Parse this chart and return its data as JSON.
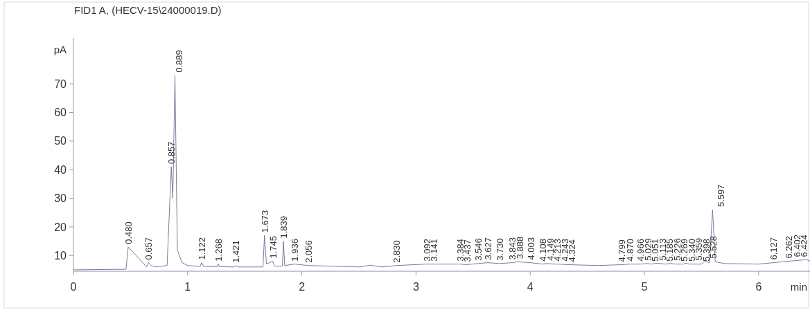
{
  "chart_data": {
    "type": "line",
    "title": "FID1 A,  (HECV-15\\24000019.D)",
    "xlabel": "min",
    "ylabel": "pA",
    "xlim": [
      0,
      6.45
    ],
    "ylim": [
      4.5,
      86
    ],
    "xticks": [
      0,
      1,
      2,
      3,
      4,
      5,
      6
    ],
    "yticks": [
      10,
      20,
      30,
      40,
      50,
      60,
      70
    ],
    "grid": false,
    "marker": "none",
    "line_style": "solid",
    "series": [
      {
        "color": "#7a7a9a",
        "x": [
          0,
          0.46,
          0.48,
          0.55,
          0.64,
          0.657,
          0.68,
          0.72,
          0.82,
          0.857,
          0.87,
          0.889,
          0.91,
          0.95,
          1.0,
          1.11,
          1.122,
          1.14,
          1.26,
          1.268,
          1.28,
          1.41,
          1.421,
          1.44,
          1.66,
          1.673,
          1.69,
          1.745,
          1.76,
          1.83,
          1.839,
          1.85,
          1.936,
          2.056,
          2.5,
          2.6,
          2.7,
          2.83,
          3.092,
          3.141,
          3.384,
          3.437,
          3.546,
          3.627,
          3.73,
          3.843,
          3.888,
          4.003,
          4.108,
          4.149,
          4.213,
          4.243,
          4.324,
          4.6,
          4.799,
          4.87,
          4.966,
          5.029,
          5.051,
          5.113,
          5.185,
          5.226,
          5.269,
          5.34,
          5.359,
          5.398,
          5.5,
          5.528,
          5.57,
          5.597,
          5.62,
          5.7,
          6.0,
          6.127,
          6.262,
          6.402,
          6.424,
          6.45
        ],
        "values": [
          5,
          5.2,
          13,
          10,
          6,
          7.5,
          6.5,
          6,
          6.5,
          41,
          30,
          73,
          12,
          7.5,
          6.5,
          6.2,
          7.5,
          6.2,
          6.1,
          7,
          6.1,
          6,
          6.5,
          6,
          6,
          17,
          7,
          8,
          6.3,
          6.3,
          15,
          6.5,
          7,
          6.5,
          6,
          6.6,
          6,
          6.5,
          7,
          7,
          7,
          6.8,
          7.2,
          7.5,
          7.2,
          7.5,
          7.8,
          7.5,
          7,
          7.2,
          7,
          7,
          6.8,
          6.5,
          6.8,
          7,
          7,
          7.2,
          7,
          7.3,
          7,
          7.2,
          7,
          7,
          7.3,
          7,
          7,
          8,
          7.5,
          26,
          7.8,
          7.2,
          7,
          7.5,
          8,
          8.5,
          8.5,
          8
        ]
      }
    ],
    "annotations": [
      {
        "text": "0.480",
        "x": 0.48,
        "y": 13
      },
      {
        "text": "0.657",
        "x": 0.657,
        "y": 7.5
      },
      {
        "text": "0.857",
        "x": 0.857,
        "y": 41
      },
      {
        "text": "0.889",
        "x": 0.889,
        "y": 73
      },
      {
        "text": "1.122",
        "x": 1.122,
        "y": 7.5
      },
      {
        "text": "1.268",
        "x": 1.268,
        "y": 7
      },
      {
        "text": "1.421",
        "x": 1.421,
        "y": 6.5
      },
      {
        "text": "1.673",
        "x": 1.673,
        "y": 17
      },
      {
        "text": "1.745",
        "x": 1.745,
        "y": 8
      },
      {
        "text": "1.839",
        "x": 1.839,
        "y": 15
      },
      {
        "text": "1.936",
        "x": 1.936,
        "y": 7
      },
      {
        "text": "2.056",
        "x": 2.056,
        "y": 6.5
      },
      {
        "text": "2.830",
        "x": 2.83,
        "y": 6.5
      },
      {
        "text": "3.092",
        "x": 3.092,
        "y": 7
      },
      {
        "text": "3.141",
        "x": 3.141,
        "y": 7
      },
      {
        "text": "3.384",
        "x": 3.384,
        "y": 7
      },
      {
        "text": "3.437",
        "x": 3.437,
        "y": 6.8
      },
      {
        "text": "3.546",
        "x": 3.546,
        "y": 7.2
      },
      {
        "text": "3.627",
        "x": 3.627,
        "y": 7.5
      },
      {
        "text": "3.730",
        "x": 3.73,
        "y": 7.2
      },
      {
        "text": "3.843",
        "x": 3.843,
        "y": 7.5
      },
      {
        "text": "3.888",
        "x": 3.888,
        "y": 7.8
      },
      {
        "text": "4.003",
        "x": 4.003,
        "y": 7.5
      },
      {
        "text": "4.108",
        "x": 4.108,
        "y": 7
      },
      {
        "text": "4.149",
        "x": 4.149,
        "y": 7.2
      },
      {
        "text": "4.213",
        "x": 4.213,
        "y": 7
      },
      {
        "text": "4.243",
        "x": 4.243,
        "y": 7
      },
      {
        "text": "4.324",
        "x": 4.324,
        "y": 6.8
      },
      {
        "text": "4.799",
        "x": 4.799,
        "y": 6.8
      },
      {
        "text": "4.870",
        "x": 4.87,
        "y": 7
      },
      {
        "text": "4.966",
        "x": 4.966,
        "y": 7
      },
      {
        "text": "5.029",
        "x": 5.029,
        "y": 7.2
      },
      {
        "text": "5.051",
        "x": 5.051,
        "y": 7
      },
      {
        "text": "5.113",
        "x": 5.113,
        "y": 7.3
      },
      {
        "text": "5.185",
        "x": 5.185,
        "y": 7
      },
      {
        "text": "5.226",
        "x": 5.226,
        "y": 7.2
      },
      {
        "text": "5.269",
        "x": 5.269,
        "y": 7
      },
      {
        "text": "5.340",
        "x": 5.34,
        "y": 7
      },
      {
        "text": "5.359",
        "x": 5.359,
        "y": 7.3
      },
      {
        "text": "5.398",
        "x": 5.398,
        "y": 7
      },
      {
        "text": "5.528",
        "x": 5.528,
        "y": 8
      },
      {
        "text": "5.597",
        "x": 5.597,
        "y": 26
      },
      {
        "text": "6.127",
        "x": 6.127,
        "y": 7.5
      },
      {
        "text": "6.262",
        "x": 6.262,
        "y": 8
      },
      {
        "text": "6.402",
        "x": 6.402,
        "y": 8.5
      },
      {
        "text": "6.424",
        "x": 6.424,
        "y": 8.5
      }
    ]
  }
}
